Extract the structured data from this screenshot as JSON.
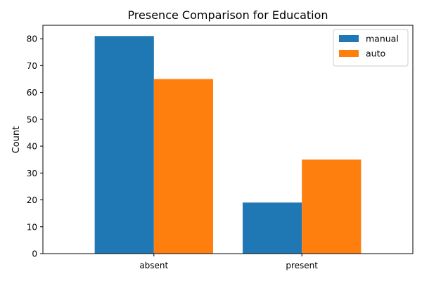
{
  "chart_data": {
    "type": "bar",
    "title": "Presence Comparison for Education",
    "xlabel": "",
    "ylabel": "Count",
    "categories": [
      "absent",
      "present"
    ],
    "series": [
      {
        "name": "manual",
        "values": [
          81,
          19
        ],
        "color": "#1f77b4"
      },
      {
        "name": "auto",
        "values": [
          65,
          35
        ],
        "color": "#ff7f0e"
      }
    ],
    "ylim": [
      0,
      85
    ],
    "yticks": [
      0,
      10,
      20,
      30,
      40,
      50,
      60,
      70,
      80
    ],
    "grid": false,
    "legend_position": "top-right"
  }
}
